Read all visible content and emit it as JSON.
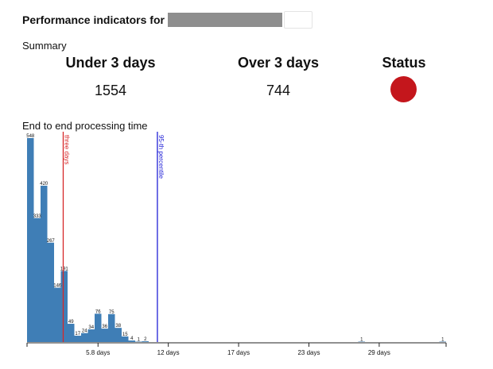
{
  "header": {
    "title": "Performance indicators for"
  },
  "summary": {
    "label": "Summary",
    "under_heading": "Under 3 days",
    "under_value": "1554",
    "over_heading": "Over 3 days",
    "over_value": "744",
    "status_heading": "Status",
    "status_color": "#c4161c"
  },
  "chart_title": "End to end processing time",
  "colors": {
    "bar": "#3f7eb6",
    "three_days_line": "#d62728",
    "percentile_line": "#1f1fd6"
  },
  "chart_data": {
    "type": "bar",
    "title": "End to end processing time",
    "xlim": [
      0,
      30.7
    ],
    "ylim": [
      0,
      548
    ],
    "values": [
      548,
      333,
      420,
      267,
      146,
      191,
      49,
      17,
      24,
      34,
      76,
      36,
      75,
      38,
      15,
      4,
      1,
      2,
      0,
      0,
      0,
      0,
      0,
      0,
      0,
      0,
      0,
      0,
      0,
      0,
      0,
      0,
      0,
      0,
      0,
      0,
      0,
      0,
      0,
      0,
      0,
      0,
      0,
      0,
      0,
      0,
      0,
      0,
      0,
      1,
      0,
      0,
      0,
      0,
      0,
      0,
      0,
      0,
      0,
      0,
      0,
      1
    ],
    "labeled_bins": [
      0,
      1,
      2,
      3,
      4,
      5,
      6,
      7,
      8,
      9,
      10,
      11,
      12,
      13,
      14,
      15,
      16,
      17,
      49,
      61
    ],
    "xticks": [
      {
        "value": 5.2,
        "label": "5.8 days"
      },
      {
        "value": 10.35,
        "label": "12 days"
      },
      {
        "value": 15.5,
        "label": "17 days"
      },
      {
        "value": 20.65,
        "label": "23 days"
      },
      {
        "value": 25.8,
        "label": "29 days"
      }
    ],
    "markers": [
      {
        "value": 2.65,
        "label": "three days",
        "color": "#d62728"
      },
      {
        "value": 9.55,
        "label": "95-th percentile",
        "color": "#1f1fd6"
      }
    ]
  }
}
